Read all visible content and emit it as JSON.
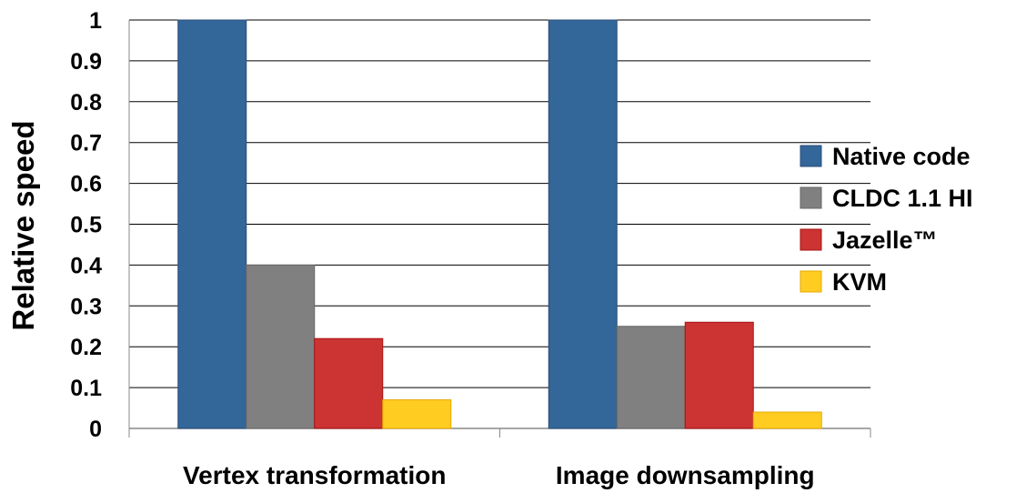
{
  "chart_data": {
    "type": "bar",
    "ylabel": "Relative speed",
    "xlabel": "",
    "ylim": [
      0,
      1
    ],
    "yticks": [
      "0",
      "0.1",
      "0.2",
      "0.3",
      "0.4",
      "0.5",
      "0.6",
      "0.7",
      "0.8",
      "0.9",
      "1"
    ],
    "grid": true,
    "legend_position": "right",
    "categories": [
      "Vertex transformation",
      "Image downsampling"
    ],
    "series": [
      {
        "name": "Native code",
        "values": [
          1.0,
          1.0
        ],
        "color": "#336699"
      },
      {
        "name": "CLDC 1.1 HI",
        "values": [
          0.4,
          0.25
        ],
        "color": "#808080"
      },
      {
        "name": "Jazelle™",
        "values": [
          0.22,
          0.26
        ],
        "color": "#cc3333"
      },
      {
        "name": "KVM",
        "values": [
          0.07,
          0.04
        ],
        "color": "#ffcc22"
      }
    ]
  }
}
